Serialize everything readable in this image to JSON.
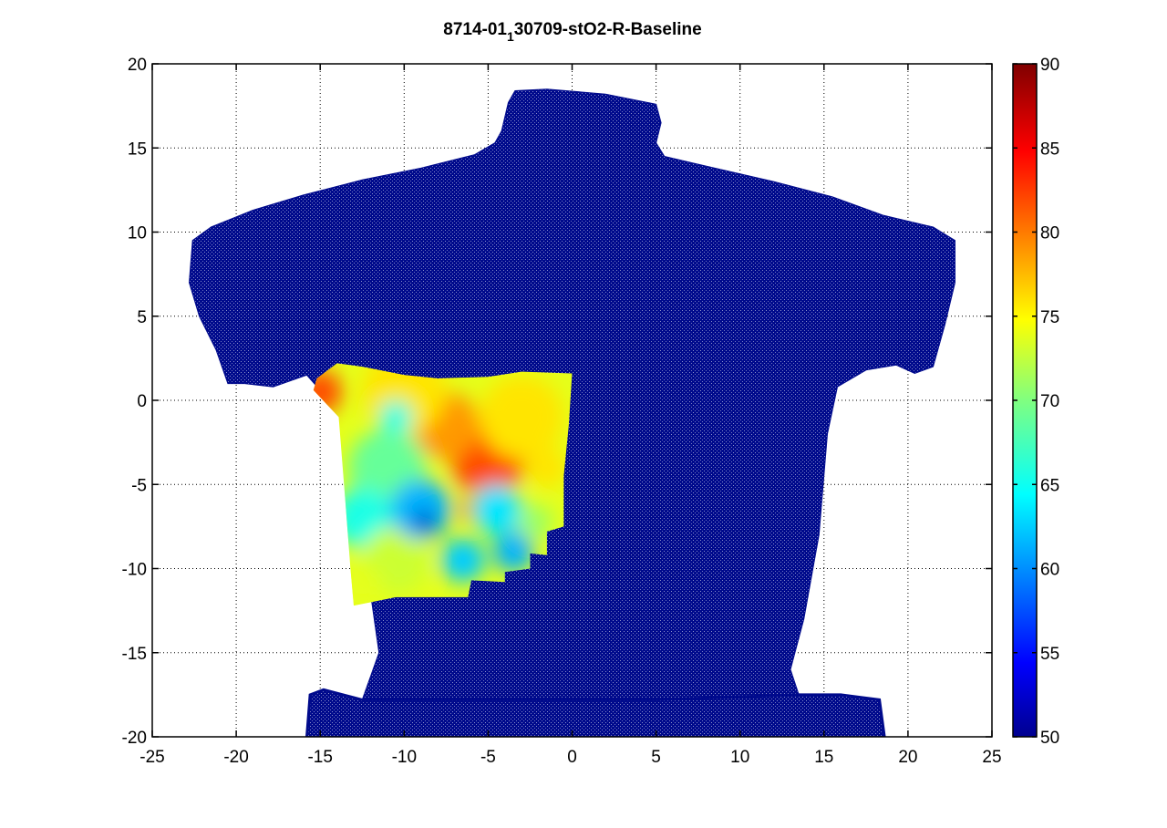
{
  "chart_data": {
    "type": "heatmap",
    "title_main": "8714-01",
    "title_sub": "1",
    "title_rest": "30709-stO2-R-Baseline",
    "xlim": [
      -25,
      25
    ],
    "ylim": [
      -20,
      20
    ],
    "xticks": [
      -25,
      -20,
      -15,
      -10,
      -5,
      0,
      5,
      10,
      15,
      20,
      25
    ],
    "yticks": [
      -20,
      -15,
      -10,
      -5,
      0,
      5,
      10,
      15,
      20
    ],
    "grid": true,
    "colorbar": {
      "colormap": "jet",
      "range": [
        50,
        90
      ],
      "ticks": [
        50,
        55,
        60,
        65,
        70,
        75,
        80,
        85,
        90
      ]
    },
    "background_value": 50,
    "silhouette": [
      [
        -15.8,
        -20
      ],
      [
        -15.6,
        -17.5
      ],
      [
        -14.8,
        -17.2
      ],
      [
        -12.5,
        -17.8
      ],
      [
        -11.5,
        -15
      ],
      [
        -12.5,
        -8
      ],
      [
        -13.6,
        -1
      ],
      [
        -15.8,
        1.5
      ],
      [
        -17.8,
        0.8
      ],
      [
        -19.5,
        1
      ],
      [
        -20.5,
        1
      ],
      [
        -21.2,
        3
      ],
      [
        -22.2,
        5
      ],
      [
        -22.8,
        7
      ],
      [
        -22.6,
        9.5
      ],
      [
        -21.5,
        10.3
      ],
      [
        -19,
        11.3
      ],
      [
        -16,
        12.2
      ],
      [
        -12.5,
        13.1
      ],
      [
        -9,
        13.8
      ],
      [
        -5.8,
        14.6
      ],
      [
        -4.6,
        15.3
      ],
      [
        -4.2,
        16
      ],
      [
        -3.8,
        17.7
      ],
      [
        -3.4,
        18.4
      ],
      [
        -1.5,
        18.5
      ],
      [
        2,
        18.2
      ],
      [
        5,
        17.6
      ],
      [
        5.3,
        16.5
      ],
      [
        5,
        15.3
      ],
      [
        5.5,
        14.5
      ],
      [
        8.5,
        13.8
      ],
      [
        12,
        13
      ],
      [
        15.5,
        12.1
      ],
      [
        18.5,
        11
      ],
      [
        21.5,
        10.3
      ],
      [
        22.8,
        9.5
      ],
      [
        22.8,
        7
      ],
      [
        22.2,
        4.5
      ],
      [
        21.5,
        2
      ],
      [
        20.4,
        1.6
      ],
      [
        19.3,
        2.1
      ],
      [
        17.5,
        1.8
      ],
      [
        15.8,
        0.8
      ],
      [
        15.2,
        -2
      ],
      [
        14.7,
        -8
      ],
      [
        13.8,
        -13
      ],
      [
        13,
        -16
      ],
      [
        13.5,
        -17.5
      ],
      [
        16,
        -17.5
      ],
      [
        18.3,
        -17.8
      ],
      [
        18.6,
        -20
      ]
    ],
    "waist": [
      [
        -15.8,
        -20
      ],
      [
        -15.6,
        -17.5
      ],
      [
        -14.8,
        -17.2
      ],
      [
        -12.5,
        -17.8
      ],
      [
        5,
        -17.8
      ],
      [
        13.5,
        -17.5
      ],
      [
        16,
        -17.5
      ],
      [
        18.3,
        -17.8
      ],
      [
        18.6,
        -20
      ]
    ],
    "measured_region": [
      [
        -15.2,
        1.3
      ],
      [
        -14,
        2.2
      ],
      [
        -12.5,
        2
      ],
      [
        -10,
        1.5
      ],
      [
        -8,
        1.3
      ],
      [
        -5,
        1.4
      ],
      [
        -3,
        1.7
      ],
      [
        0,
        1.6
      ],
      [
        -0.2,
        -1.5
      ],
      [
        -0.5,
        -4.5
      ],
      [
        -0.5,
        -7.5
      ],
      [
        -1.5,
        -7.8
      ],
      [
        -1.5,
        -9.2
      ],
      [
        -2.5,
        -9.1
      ],
      [
        -2.5,
        -10
      ],
      [
        -4,
        -10.2
      ],
      [
        -4,
        -10.8
      ],
      [
        -6,
        -10.7
      ],
      [
        -6.2,
        -11.7
      ],
      [
        -8.5,
        -11.7
      ],
      [
        -10.5,
        -11.7
      ],
      [
        -13,
        -12.2
      ],
      [
        -13.2,
        -10
      ],
      [
        -13.5,
        -6
      ],
      [
        -13.9,
        -1
      ],
      [
        -15.4,
        0.6
      ]
    ],
    "field_blobs": [
      {
        "x": -15,
        "y": 0.5,
        "value": 82,
        "r": 1.3
      },
      {
        "x": -5,
        "y": -3.5,
        "value": 82,
        "r": 2.2
      },
      {
        "x": -7.5,
        "y": -1.5,
        "value": 79,
        "r": 2
      },
      {
        "x": -3,
        "y": -1,
        "value": 76,
        "r": 2.5
      },
      {
        "x": -10,
        "y": 0.5,
        "value": 76,
        "r": 2.5
      },
      {
        "x": -11,
        "y": -4,
        "value": 69,
        "r": 2.3
      },
      {
        "x": -10.5,
        "y": -1,
        "value": 66,
        "r": 1
      },
      {
        "x": -12.5,
        "y": -7,
        "value": 66,
        "r": 1.8
      },
      {
        "x": -10.5,
        "y": -9.5,
        "value": 73,
        "r": 2
      },
      {
        "x": -9,
        "y": -6.5,
        "value": 62,
        "r": 1.8
      },
      {
        "x": -8.8,
        "y": -7.2,
        "value": 52,
        "r": 0.6
      },
      {
        "x": -6,
        "y": -6.5,
        "value": 83,
        "r": 0.6
      },
      {
        "x": -4.5,
        "y": -6.5,
        "value": 64,
        "r": 1.5
      },
      {
        "x": -3.5,
        "y": -9,
        "value": 62,
        "r": 1.2
      },
      {
        "x": -6.5,
        "y": -9.5,
        "value": 63,
        "r": 1.3
      },
      {
        "x": -2.2,
        "y": -7.2,
        "value": 71,
        "r": 1
      },
      {
        "x": -1.5,
        "y": -4,
        "value": 76,
        "r": 1.2
      },
      {
        "x": -12.5,
        "y": -11,
        "value": 74,
        "r": 1.2
      }
    ]
  }
}
